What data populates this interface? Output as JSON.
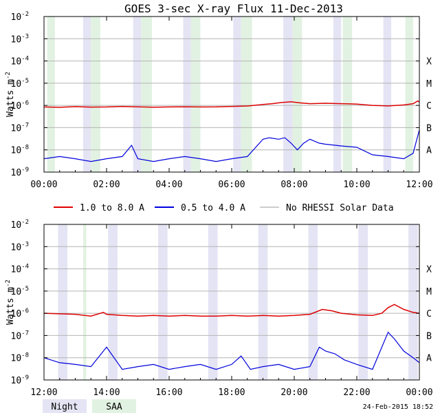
{
  "title": "GOES 3-sec X-ray Flux   11-Dec-2013",
  "ylabel": "Watts m",
  "ylabel_exp": "-2",
  "footer_date": "24-Feb-2015 18:52",
  "colors": {
    "long": "#dd0000",
    "short": "#0000dd",
    "no_rhessi": "#999999",
    "night": "#e4e4f4",
    "saa": "#e2f2e2",
    "grid": "#b4b4b4"
  },
  "legend": {
    "items": [
      {
        "label": "1.0 to 8.0 A",
        "color": "#dd0000"
      },
      {
        "label": "0.5 to 4.0 A",
        "color": "#0000dd"
      },
      {
        "label": "No RHESSI Solar Data",
        "color": "#999999"
      }
    ]
  },
  "key": {
    "night": "Night",
    "saa": "SAA"
  },
  "chart_data": [
    {
      "type": "line",
      "name": "panel-1",
      "x_unit": "hours UT",
      "xlim": [
        0,
        12
      ],
      "x_ticks": [
        0,
        2,
        4,
        6,
        8,
        10,
        12
      ],
      "x_tick_labels": [
        "00:00",
        "02:00",
        "04:00",
        "06:00",
        "08:00",
        "10:00",
        "12:00"
      ],
      "y_scale": "log",
      "ylim": [
        1e-09,
        0.01
      ],
      "y_ticks": [
        {
          "base": "10",
          "exp": "-9"
        },
        {
          "base": "10",
          "exp": "-8"
        },
        {
          "base": "10",
          "exp": "-7"
        },
        {
          "base": "10",
          "exp": "-6"
        },
        {
          "base": "10",
          "exp": "-5"
        },
        {
          "base": "10",
          "exp": "-4"
        },
        {
          "base": "10",
          "exp": "-3"
        },
        {
          "base": "10",
          "exp": "-2"
        }
      ],
      "class_labels": [
        {
          "label": "A",
          "value": 1e-08
        },
        {
          "label": "B",
          "value": 1e-07
        },
        {
          "label": "C",
          "value": 1e-06
        },
        {
          "label": "M",
          "value": 1e-05
        },
        {
          "label": "X",
          "value": 0.0001
        }
      ],
      "night": [
        [
          1.25,
          1.5
        ],
        [
          2.85,
          3.1
        ],
        [
          4.45,
          4.7
        ],
        [
          6.05,
          6.3
        ],
        [
          7.65,
          7.95
        ],
        [
          9.25,
          9.5
        ],
        [
          10.85,
          11.1
        ]
      ],
      "saa": [
        [
          0.1,
          0.35
        ],
        [
          1.5,
          1.8
        ],
        [
          3.1,
          3.45
        ],
        [
          4.7,
          5.0
        ],
        [
          6.3,
          6.65
        ],
        [
          7.95,
          8.25
        ],
        [
          9.55,
          9.85
        ],
        [
          11.55,
          11.8
        ]
      ],
      "series": [
        {
          "name": "1.0 to 8.0 A",
          "color": "#dd0000",
          "x": [
            0,
            0.5,
            1.0,
            1.5,
            2.0,
            2.5,
            3.0,
            3.5,
            4.0,
            4.5,
            5.0,
            5.5,
            6.0,
            6.5,
            7.0,
            7.3,
            7.6,
            7.9,
            8.2,
            8.5,
            9.0,
            9.5,
            10.0,
            10.5,
            11.0,
            11.5,
            11.8,
            11.95,
            12.0
          ],
          "y": [
            8.5e-07,
            8.2e-07,
            8.8e-07,
            8.4e-07,
            8.5e-07,
            9e-07,
            8.6e-07,
            8.3e-07,
            8.5e-07,
            8.7e-07,
            8.5e-07,
            8.6e-07,
            9e-07,
            9.4e-07,
            1.1e-06,
            1.2e-06,
            1.35e-06,
            1.45e-06,
            1.3e-06,
            1.2e-06,
            1.25e-06,
            1.2e-06,
            1.15e-06,
            1e-06,
            9.5e-07,
            1.05e-06,
            1.2e-06,
            1.6e-06,
            1.4e-06
          ]
        },
        {
          "name": "0.5 to 4.0 A",
          "color": "#0000dd",
          "x": [
            0,
            0.5,
            1.0,
            1.5,
            2.0,
            2.5,
            2.8,
            3.0,
            3.5,
            4.0,
            4.5,
            5.0,
            5.5,
            6.0,
            6.5,
            7.0,
            7.2,
            7.5,
            7.7,
            7.9,
            8.1,
            8.3,
            8.5,
            8.8,
            9.0,
            9.5,
            10.0,
            10.5,
            11.0,
            11.5,
            11.8,
            12.0
          ],
          "y": [
            4e-09,
            5e-09,
            4e-09,
            3e-09,
            4e-09,
            5e-09,
            1.6e-08,
            4e-09,
            3e-09,
            4e-09,
            5e-09,
            4e-09,
            3e-09,
            4e-09,
            5e-09,
            3e-08,
            3.5e-08,
            3e-08,
            3.5e-08,
            2e-08,
            1e-08,
            2e-08,
            3e-08,
            2e-08,
            1.8e-08,
            1.5e-08,
            1.3e-08,
            6e-09,
            5e-09,
            4e-09,
            7e-09,
            8e-08
          ]
        }
      ]
    },
    {
      "type": "line",
      "name": "panel-2",
      "x_unit": "hours UT",
      "xlim": [
        12,
        24
      ],
      "x_ticks": [
        12,
        14,
        16,
        18,
        20,
        22,
        24
      ],
      "x_tick_labels": [
        "12:00",
        "14:00",
        "16:00",
        "18:00",
        "20:00",
        "22:00",
        "00:00"
      ],
      "y_scale": "log",
      "ylim": [
        1e-09,
        0.01
      ],
      "y_ticks": [
        {
          "base": "10",
          "exp": "-9"
        },
        {
          "base": "10",
          "exp": "-8"
        },
        {
          "base": "10",
          "exp": "-7"
        },
        {
          "base": "10",
          "exp": "-6"
        },
        {
          "base": "10",
          "exp": "-5"
        },
        {
          "base": "10",
          "exp": "-4"
        },
        {
          "base": "10",
          "exp": "-3"
        },
        {
          "base": "10",
          "exp": "-2"
        }
      ],
      "class_labels": [
        {
          "label": "A",
          "value": 1e-08
        },
        {
          "label": "B",
          "value": 1e-07
        },
        {
          "label": "C",
          "value": 1e-06
        },
        {
          "label": "M",
          "value": 1e-05
        },
        {
          "label": "X",
          "value": 0.0001
        }
      ],
      "night": [
        [
          12.45,
          12.75
        ],
        [
          14.05,
          14.35
        ],
        [
          15.65,
          15.95
        ],
        [
          17.25,
          17.55
        ],
        [
          18.85,
          19.15
        ],
        [
          20.45,
          20.75
        ],
        [
          22.05,
          22.35
        ],
        [
          23.65,
          23.95
        ]
      ],
      "saa": [
        [
          13.25,
          13.35
        ]
      ],
      "series": [
        {
          "name": "1.0 to 8.0 A",
          "color": "#dd0000",
          "x": [
            12.0,
            12.5,
            13.0,
            13.5,
            13.9,
            14.0,
            14.5,
            15.0,
            15.5,
            16.0,
            16.5,
            17.0,
            17.5,
            18.0,
            18.5,
            19.0,
            19.5,
            20.0,
            20.5,
            20.9,
            21.2,
            21.5,
            22.0,
            22.5,
            22.8,
            23.0,
            23.2,
            23.5,
            23.8,
            24.0
          ],
          "y": [
            1e-06,
            9.5e-07,
            9e-07,
            7.5e-07,
            1.1e-06,
            9e-07,
            8e-07,
            7.5e-07,
            8e-07,
            7.5e-07,
            8e-07,
            7.5e-07,
            7.5e-07,
            8e-07,
            7.5e-07,
            8e-07,
            7.5e-07,
            8e-07,
            9e-07,
            1.5e-06,
            1.3e-06,
            1e-06,
            8.5e-07,
            8e-07,
            1e-06,
            1.8e-06,
            2.5e-06,
            1.5e-06,
            1.1e-06,
            1e-06
          ]
        },
        {
          "name": "0.5 to 4.0 A",
          "color": "#0000dd",
          "x": [
            12.0,
            12.5,
            13.0,
            13.5,
            14.0,
            14.5,
            15.0,
            15.5,
            16.0,
            16.5,
            17.0,
            17.5,
            18.0,
            18.3,
            18.6,
            19.0,
            19.5,
            20.0,
            20.5,
            20.8,
            21.0,
            21.3,
            21.6,
            22.0,
            22.5,
            23.0,
            23.2,
            23.5,
            23.8,
            24.0
          ],
          "y": [
            1e-08,
            6e-09,
            5e-09,
            4e-09,
            3e-08,
            3e-09,
            4e-09,
            5e-09,
            3e-09,
            4e-09,
            5e-09,
            3e-09,
            5e-09,
            1.2e-08,
            3e-09,
            4e-09,
            5e-09,
            3e-09,
            4e-09,
            3e-08,
            2e-08,
            1.5e-08,
            8e-09,
            5e-09,
            3e-09,
            1.4e-07,
            7e-08,
            2e-08,
            1e-08,
            6e-09
          ]
        }
      ]
    }
  ]
}
